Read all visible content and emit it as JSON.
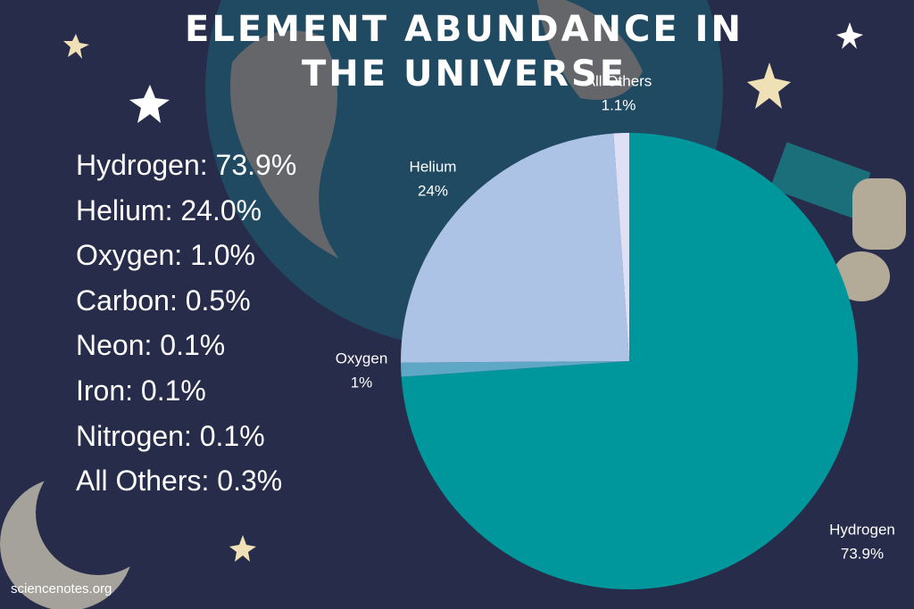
{
  "chart_data": {
    "type": "pie",
    "title": "ELEMENT ABUNDANCE IN THE UNIVERSE",
    "categories": [
      "Hydrogen",
      "Oxygen",
      "Helium",
      "All Others"
    ],
    "values": [
      73.9,
      1,
      24,
      1.1
    ],
    "value_labels": [
      "73.9%",
      "1%",
      "24%",
      "1.1%"
    ],
    "colors": [
      "#00979c",
      "#5ea8c6",
      "#adc3e6",
      "#dfe0f6"
    ]
  },
  "list": [
    "Hydrogen: 73.9%",
    "Helium: 24.0%",
    "Oxygen: 1.0%",
    "Carbon: 0.5%",
    "Neon: 0.1%",
    "Iron: 0.1%",
    "Nitrogen: 0.1%",
    "All Others: 0.3%"
  ],
  "source": "sciencenotes.org"
}
